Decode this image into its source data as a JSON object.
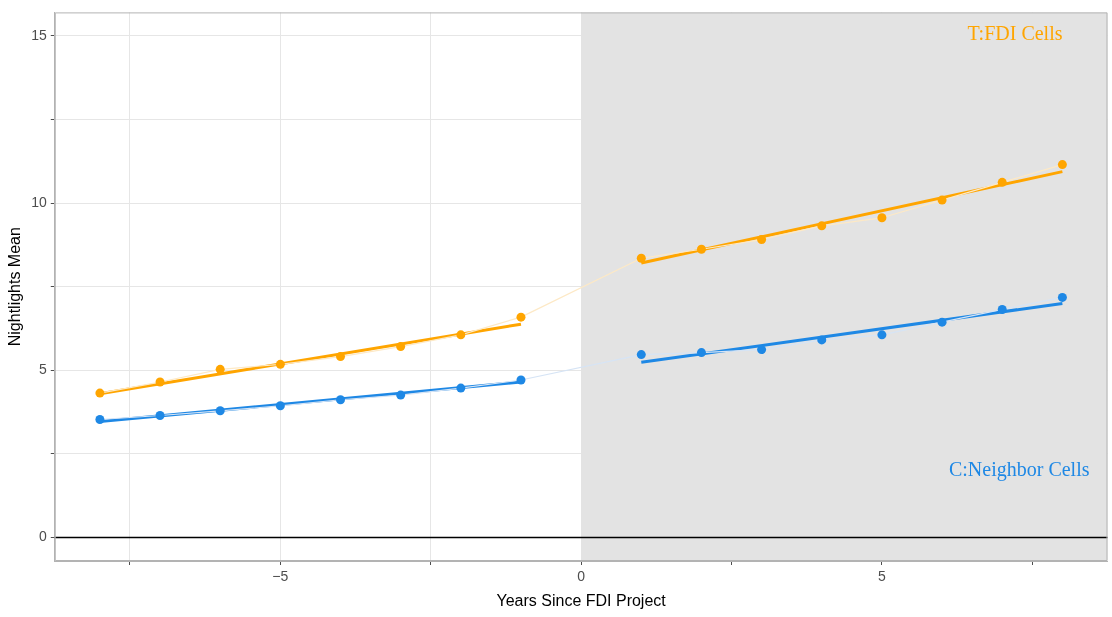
{
  "chart_data": {
    "type": "scatter",
    "xlabel": "Years Since FDI Project",
    "ylabel": "Nightlights Mean",
    "xlim": [
      -8.75,
      8.75
    ],
    "ylim": [
      -0.7,
      15.7
    ],
    "xticks": [
      {
        "value": -7.5,
        "label": null
      },
      {
        "value": -5,
        "label": "−5"
      },
      {
        "value": -2.5,
        "label": null
      },
      0,
      {
        "value": 2.5,
        "label": null
      },
      5,
      {
        "value": 7.5,
        "label": null
      }
    ],
    "yticks": [
      0,
      {
        "value": 2.5,
        "label": null
      },
      5,
      {
        "value": 7.5,
        "label": null
      },
      10,
      {
        "value": 12.5,
        "label": null
      },
      15
    ],
    "grid": true,
    "legend": false,
    "bands": [
      {
        "axis": "x",
        "from": 0,
        "to": 8.75,
        "color": "#e3e3e3"
      }
    ],
    "ref_lines": [
      {
        "axis": "y",
        "value": 0,
        "color": "#000000"
      }
    ],
    "series": [
      {
        "type": "line",
        "marker": "none",
        "color": "#fde9c6",
        "x": [
          -8,
          -7,
          -6,
          -5,
          -4,
          -3,
          -2,
          -1,
          1,
          2,
          3,
          4,
          5,
          6,
          7,
          8
        ],
        "values": [
          4.32,
          4.65,
          5.03,
          5.18,
          5.41,
          5.71,
          6.06,
          6.59,
          8.35,
          8.62,
          8.91,
          9.32,
          9.56,
          10.09,
          10.62,
          11.15
        ]
      },
      {
        "type": "line",
        "marker": "none",
        "color": "#d6e4f5",
        "x": [
          -8,
          -7,
          -6,
          -5,
          -4,
          -3,
          -2,
          -1,
          1,
          2,
          3,
          4,
          5,
          6,
          7,
          8
        ],
        "values": [
          3.53,
          3.65,
          3.79,
          3.94,
          4.12,
          4.26,
          4.47,
          4.71,
          5.47,
          5.53,
          5.62,
          5.91,
          6.06,
          6.44,
          6.82,
          7.18
        ]
      },
      {
        "type": "line",
        "marker": "none",
        "color": "#ffa500",
        "x": [
          -8,
          -1
        ],
        "values": [
          4.3,
          6.38
        ]
      },
      {
        "type": "line",
        "marker": "none",
        "color": "#ffa500",
        "x": [
          1,
          8
        ],
        "values": [
          8.21,
          10.94
        ]
      },
      {
        "type": "line",
        "marker": "none",
        "color": "#1e88e5",
        "x": [
          -8,
          -1
        ],
        "values": [
          3.47,
          4.65
        ]
      },
      {
        "type": "line",
        "marker": "none",
        "color": "#1e88e5",
        "x": [
          1,
          8
        ],
        "values": [
          5.24,
          7.0
        ]
      },
      {
        "name": "T:FDI Cells",
        "marker": "circle",
        "color": "#ffa500",
        "x": [
          -8,
          -7,
          -6,
          -5,
          -4,
          -3,
          -2,
          -1,
          1,
          2,
          3,
          4,
          5,
          6,
          7,
          8
        ],
        "values": [
          4.32,
          4.65,
          5.03,
          5.18,
          5.41,
          5.71,
          6.06,
          6.59,
          8.35,
          8.62,
          8.91,
          9.32,
          9.56,
          10.09,
          10.62,
          11.15
        ]
      },
      {
        "name": "C:Neighbor Cells",
        "marker": "circle",
        "color": "#1e88e5",
        "x": [
          -8,
          -7,
          -6,
          -5,
          -4,
          -3,
          -2,
          -1,
          1,
          2,
          3,
          4,
          5,
          6,
          7,
          8
        ],
        "values": [
          3.53,
          3.65,
          3.79,
          3.94,
          4.12,
          4.26,
          4.47,
          4.71,
          5.47,
          5.53,
          5.62,
          5.91,
          6.06,
          6.44,
          6.82,
          7.18
        ]
      }
    ]
  }
}
